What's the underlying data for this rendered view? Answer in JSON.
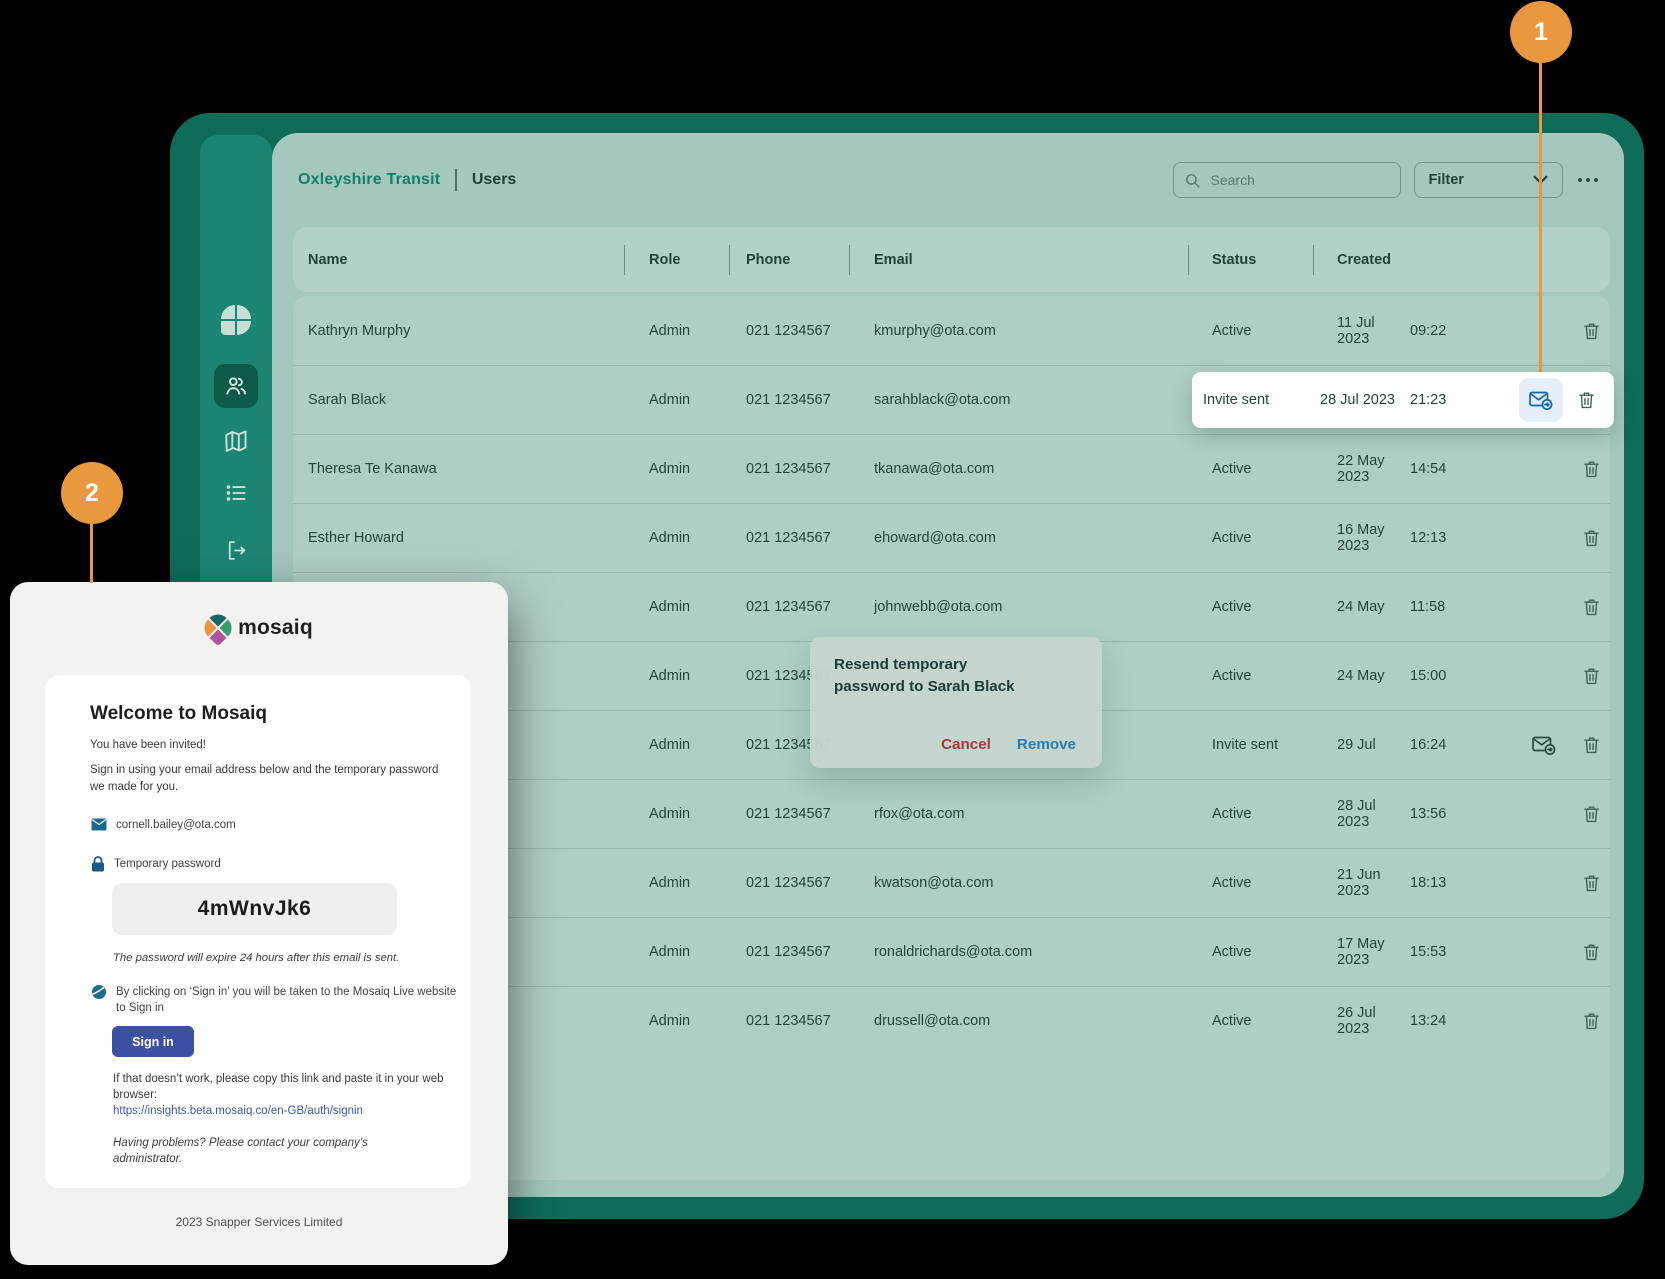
{
  "header": {
    "org": "Oxleyshire Transit",
    "page": "Users",
    "search_placeholder": "Search",
    "filter_label": "Filter"
  },
  "table": {
    "columns": [
      "Name",
      "Role",
      "Phone",
      "Email",
      "Status",
      "Created"
    ],
    "rows": [
      {
        "name": "Kathryn Murphy",
        "role": "Admin",
        "phone": "021 1234567",
        "email": "kmurphy@ota.com",
        "status": "Active",
        "date": "11 Jul 2023",
        "time": "09:22",
        "resend": false
      },
      {
        "name": "Sarah Black",
        "role": "Admin",
        "phone": "021 1234567",
        "email": "sarahblack@ota.com",
        "status": "Invite sent",
        "date": "28 Jul 2023",
        "time": "21:23",
        "resend": false
      },
      {
        "name": "Theresa Te Kanawa",
        "role": "Admin",
        "phone": "021 1234567",
        "email": "tkanawa@ota.com",
        "status": "Active",
        "date": "22 May 2023",
        "time": "14:54",
        "resend": false
      },
      {
        "name": "Esther Howard",
        "role": "Admin",
        "phone": "021 1234567",
        "email": "ehoward@ota.com",
        "status": "Active",
        "date": "16 May 2023",
        "time": "12:13",
        "resend": false
      },
      {
        "name": "",
        "role": "Admin",
        "phone": "021 1234567",
        "email": "johnwebb@ota.com",
        "status": "Active",
        "date": "24 May",
        "time": "11:58",
        "resend": false
      },
      {
        "name": "",
        "role": "Admin",
        "phone": "021 1234567",
        "email": "",
        "status": "Active",
        "date": "24 May",
        "time": "15:00",
        "resend": false
      },
      {
        "name": "",
        "role": "Admin",
        "phone": "021 1234567",
        "email": "",
        "status": "Invite sent",
        "date": "29 Jul",
        "time": "16:24",
        "resend": true
      },
      {
        "name": "",
        "role": "Admin",
        "phone": "021 1234567",
        "email": "rfox@ota.com",
        "status": "Active",
        "date": "28 Jul 2023",
        "time": "13:56",
        "resend": false
      },
      {
        "name": "",
        "role": "Admin",
        "phone": "021 1234567",
        "email": "kwatson@ota.com",
        "status": "Active",
        "date": "21 Jun 2023",
        "time": "18:13",
        "resend": false
      },
      {
        "name": "",
        "role": "Admin",
        "phone": "021 1234567",
        "email": "ronaldrichards@ota.com",
        "status": "Active",
        "date": "17 May 2023",
        "time": "15:53",
        "resend": false
      },
      {
        "name": "",
        "role": "Admin",
        "phone": "021 1234567",
        "email": "drussell@ota.com",
        "status": "Active",
        "date": "26 Jul 2023",
        "time": "13:24",
        "resend": false
      }
    ]
  },
  "dialog": {
    "line1": "Resend temporary",
    "line2": "password to Sarah Black",
    "cancel_label": "Cancel",
    "remove_label": "Remove"
  },
  "email": {
    "brand": "mosaiq",
    "title": "Welcome to Mosaiq",
    "invited": "You have been invited!",
    "instructions": "Sign in using your email address below and the temporary password we made for you.",
    "recipient": "cornell.bailey@ota.com",
    "password_label": "Temporary password",
    "password": "4mWnvJk6",
    "expiry_note": "The password will expire 24 hours after this email is sent.",
    "signin_note": "By clicking on ‘Sign in’ you will be taken to the Mosaiq Live website to Sign in",
    "signin_button": "Sign in",
    "link_intro": "If that doesn’t work, please copy this link and paste it in your web browser:",
    "link": "https://insights.beta.mosaiq.co/en-GB/auth/signin",
    "help_note": "Having problems? Please contact your company’s administrator.",
    "footer": "2023 Snapper Services Limited"
  },
  "callouts": {
    "one": "1",
    "two": "2"
  },
  "colors": {
    "accent_orange": "#E9983E",
    "brand_teal": "#108066",
    "frame_teal": "#0E6C59",
    "sidebar_teal": "#1C8572",
    "content_sage": "#A4C7BE",
    "signin_indigo": "#3C51A5",
    "link_indigo": "#4456AE",
    "cancel_red": "#9C3A40",
    "remove_blue": "#2B7DAC",
    "resend_blue": "#1663A6"
  }
}
